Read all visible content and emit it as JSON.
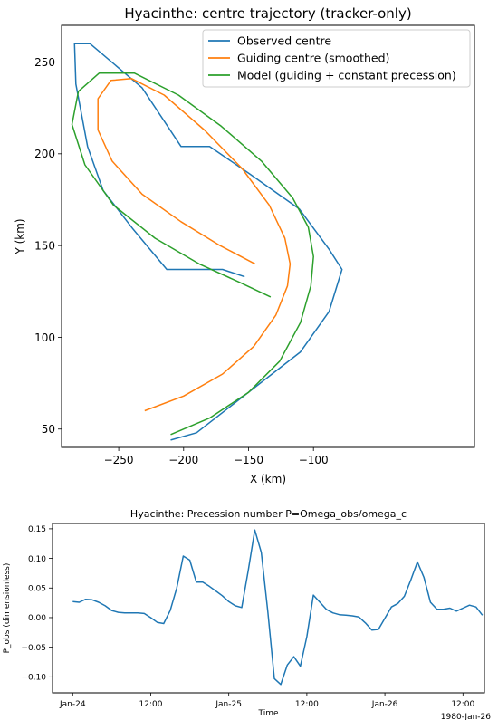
{
  "chart_data": [
    {
      "type": "line",
      "title": "Hyacinthe: centre trajectory (tracker-only)",
      "xlabel": "X (km)",
      "ylabel": "Y (km)",
      "xlim": [
        -294,
        24
      ],
      "ylim": [
        40,
        270
      ],
      "xticks": [
        -250,
        -200,
        -150,
        -100
      ],
      "xtick_labels": [
        "−250",
        "−200",
        "−150",
        "−100"
      ],
      "yticks": [
        50,
        100,
        150,
        200,
        250
      ],
      "yticks_extended": true,
      "ytick_labels": [
        "50",
        "100",
        "150",
        "200",
        "250"
      ],
      "legend_position": "top-right",
      "grid": false,
      "series": [
        {
          "name": "Observed centre",
          "color": "#1f77b4",
          "points": [
            [
              -210,
              44
            ],
            [
              -190,
              48
            ],
            [
              -110,
              92
            ],
            [
              -88,
              114
            ],
            [
              -78,
              137
            ],
            [
              -88,
              148
            ],
            [
              -111,
              170
            ],
            [
              -149,
              189
            ],
            [
              -180,
              204
            ],
            [
              -202,
              204
            ],
            [
              -232,
              236
            ],
            [
              -272,
              260
            ],
            [
              -284,
              260
            ],
            [
              -283,
              238
            ],
            [
              -274,
              204
            ],
            [
              -262,
              180
            ],
            [
              -239,
              159
            ],
            [
              -213,
              137
            ],
            [
              -170,
              137
            ],
            [
              -153,
              133
            ]
          ]
        },
        {
          "name": "Guiding centre (smoothed)",
          "color": "#ff7f0e",
          "points": [
            [
              -230,
              60
            ],
            [
              -200,
              68
            ],
            [
              -170,
              80
            ],
            [
              -146,
              95
            ],
            [
              -129,
              112
            ],
            [
              -120,
              128
            ],
            [
              -118,
              140
            ],
            [
              -122,
              154
            ],
            [
              -134,
              172
            ],
            [
              -155,
              192
            ],
            [
              -184,
              213
            ],
            [
              -215,
              232
            ],
            [
              -240,
              241
            ],
            [
              -256,
              240
            ],
            [
              -266,
              230
            ],
            [
              -266,
              213
            ],
            [
              -255,
              196
            ],
            [
              -232,
              178
            ],
            [
              -202,
              163
            ],
            [
              -172,
              150
            ],
            [
              -145,
              140
            ]
          ]
        },
        {
          "name": "Model (guiding + constant precession)",
          "color": "#2ca02c",
          "points": [
            [
              -210,
              47
            ],
            [
              -180,
              56
            ],
            [
              -150,
              70
            ],
            [
              -126,
              87
            ],
            [
              -110,
              108
            ],
            [
              -102,
              128
            ],
            [
              -100,
              144
            ],
            [
              -104,
              160
            ],
            [
              -116,
              176
            ],
            [
              -140,
              196
            ],
            [
              -171,
              215
            ],
            [
              -204,
              232
            ],
            [
              -238,
              244
            ],
            [
              -265,
              244
            ],
            [
              -281,
              234
            ],
            [
              -286,
              216
            ],
            [
              -276,
              194
            ],
            [
              -254,
              172
            ],
            [
              -222,
              154
            ],
            [
              -188,
              140
            ],
            [
              -157,
              130
            ],
            [
              -133,
              122
            ]
          ]
        }
      ]
    },
    {
      "type": "line",
      "title": "Hyacinthe: Precession number P=Omega_obs/omega_c",
      "xlabel": "Time",
      "ylabel": "P_obs (dimensionless)",
      "x_unit": "hours since 1980-Jan-24 00:00",
      "xlim": [
        -3.1,
        63.3
      ],
      "ylim": [
        -0.127,
        0.159
      ],
      "xticks": [
        0,
        12,
        24,
        36,
        48,
        60
      ],
      "xtick_labels": [
        "Jan-24",
        "12:00",
        "Jan-25",
        "12:00",
        "Jan-26",
        "12:00"
      ],
      "x_offset_label": "1980-Jan-26",
      "yticks": [
        -0.1,
        -0.05,
        0.0,
        0.05,
        0.1,
        0.15
      ],
      "ytick_labels": [
        "−0.10",
        "−0.05",
        "0.00",
        "0.05",
        "0.10",
        "0.15"
      ],
      "grid": false,
      "series": [
        {
          "color": "#1f77b4",
          "x": [
            0,
            1,
            2,
            3,
            4,
            5,
            6,
            7,
            8,
            9,
            10,
            11,
            12,
            13,
            14,
            15,
            16,
            17,
            18,
            19,
            20,
            21,
            22,
            23,
            24,
            25,
            26,
            27,
            28,
            29,
            30,
            31,
            32,
            33,
            34,
            35,
            36,
            37,
            38,
            39,
            40,
            41,
            42,
            43,
            44,
            45,
            46,
            47,
            48,
            49,
            50,
            51,
            52,
            53,
            54,
            55,
            56,
            57,
            58,
            59,
            60,
            61,
            62,
            63
          ],
          "y": [
            0.027,
            0.026,
            0.031,
            0.03,
            0.026,
            0.02,
            0.012,
            0.009,
            0.008,
            0.008,
            0.008,
            0.007,
            0.0,
            -0.008,
            -0.01,
            0.012,
            0.05,
            0.104,
            0.097,
            0.06,
            0.06,
            0.053,
            0.045,
            0.037,
            0.027,
            0.02,
            0.017,
            0.08,
            0.148,
            0.11,
            0.01,
            -0.103,
            -0.113,
            -0.08,
            -0.066,
            -0.082,
            -0.032,
            0.038,
            0.026,
            0.014,
            0.008,
            0.005,
            0.004,
            0.003,
            0.001,
            -0.009,
            -0.021,
            -0.02,
            -0.001,
            0.018,
            0.024,
            0.036,
            0.064,
            0.094,
            0.068,
            0.026,
            0.014,
            0.014,
            0.016,
            0.011,
            0.016,
            0.021,
            0.018,
            0.004
          ]
        }
      ]
    }
  ]
}
